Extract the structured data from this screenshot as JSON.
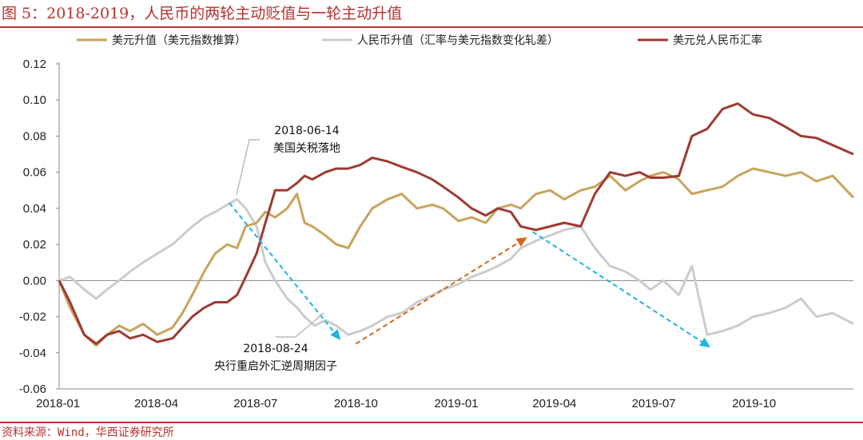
{
  "title": "图 5：2018-2019，人民币的两轮主动贬值与一轮主动升值",
  "source": "资料来源：Wind，华西证券研究所",
  "colors": {
    "usd_index": "#c9a35c",
    "rmb": "#cccccc",
    "usdcny": "#9e3a32",
    "arrow_blue": "#1fb3e8",
    "arrow_orange": "#d2691e",
    "title_red": "#b8312f"
  },
  "chart_data": {
    "type": "line",
    "title": "",
    "xlabel": "",
    "ylabel": "",
    "ylim": [
      -0.06,
      0.12
    ],
    "yticks": [
      "0.12",
      "0.10",
      "0.08",
      "0.06",
      "0.04",
      "0.02",
      "0.00",
      "-0.02",
      "-0.04",
      "-0.06"
    ],
    "xlim": [
      "2018-01-02",
      "2019-12-31"
    ],
    "xticks": [
      {
        "label": "2018-01",
        "date": "2018-01-01"
      },
      {
        "label": "2018-04",
        "date": "2018-04-01"
      },
      {
        "label": "2018-07",
        "date": "2018-07-01"
      },
      {
        "label": "2018-10",
        "date": "2018-10-01"
      },
      {
        "label": "2019-01",
        "date": "2019-01-01"
      },
      {
        "label": "2019-04",
        "date": "2019-04-01"
      },
      {
        "label": "2019-07",
        "date": "2019-07-01"
      },
      {
        "label": "2019-10",
        "date": "2019-10-01"
      }
    ],
    "legend_position": "top",
    "grid": false,
    "series": [
      {
        "name": "美元升值（美元指数推算）",
        "color": "#c9a35c",
        "x": [
          "2018-01-02",
          "2018-01-12",
          "2018-01-25",
          "2018-02-05",
          "2018-02-15",
          "2018-02-26",
          "2018-03-08",
          "2018-03-20",
          "2018-04-02",
          "2018-04-16",
          "2018-04-25",
          "2018-05-04",
          "2018-05-15",
          "2018-05-25",
          "2018-06-05",
          "2018-06-14",
          "2018-06-22",
          "2018-07-02",
          "2018-07-10",
          "2018-07-19",
          "2018-07-30",
          "2018-08-08",
          "2018-08-15",
          "2018-08-22",
          "2018-09-03",
          "2018-09-13",
          "2018-09-24",
          "2018-10-05",
          "2018-10-16",
          "2018-10-30",
          "2018-11-12",
          "2018-11-26",
          "2018-12-10",
          "2018-12-20",
          "2019-01-03",
          "2019-01-15",
          "2019-01-28",
          "2019-02-08",
          "2019-02-20",
          "2019-03-01",
          "2019-03-15",
          "2019-03-28",
          "2019-04-10",
          "2019-04-25",
          "2019-05-08",
          "2019-05-22",
          "2019-06-05",
          "2019-06-18",
          "2019-06-28",
          "2019-07-10",
          "2019-07-24",
          "2019-08-05",
          "2019-08-19",
          "2019-09-02",
          "2019-09-16",
          "2019-09-30",
          "2019-10-15",
          "2019-10-30",
          "2019-11-13",
          "2019-11-27",
          "2019-12-12",
          "2019-12-31"
        ],
        "values": [
          0.0,
          -0.015,
          -0.03,
          -0.036,
          -0.03,
          -0.025,
          -0.028,
          -0.024,
          -0.03,
          -0.026,
          -0.018,
          -0.008,
          0.005,
          0.015,
          0.02,
          0.018,
          0.03,
          0.032,
          0.038,
          0.035,
          0.04,
          0.048,
          0.032,
          0.03,
          0.025,
          0.02,
          0.018,
          0.03,
          0.04,
          0.045,
          0.048,
          0.04,
          0.042,
          0.04,
          0.033,
          0.035,
          0.032,
          0.04,
          0.042,
          0.04,
          0.048,
          0.05,
          0.045,
          0.05,
          0.052,
          0.058,
          0.05,
          0.055,
          0.058,
          0.06,
          0.056,
          0.048,
          0.05,
          0.052,
          0.058,
          0.062,
          0.06,
          0.058,
          0.06,
          0.055,
          0.058,
          0.046
        ]
      },
      {
        "name": "人民币升值（汇率与美元指数变化轧差）",
        "color": "#cccccc",
        "x": [
          "2018-01-02",
          "2018-01-12",
          "2018-01-25",
          "2018-02-05",
          "2018-02-15",
          "2018-02-26",
          "2018-03-08",
          "2018-03-20",
          "2018-04-02",
          "2018-04-16",
          "2018-04-25",
          "2018-05-04",
          "2018-05-15",
          "2018-05-25",
          "2018-06-05",
          "2018-06-14",
          "2018-06-22",
          "2018-07-02",
          "2018-07-10",
          "2018-07-19",
          "2018-07-30",
          "2018-08-08",
          "2018-08-15",
          "2018-08-24",
          "2018-09-03",
          "2018-09-13",
          "2018-09-24",
          "2018-10-05",
          "2018-10-16",
          "2018-10-30",
          "2018-11-12",
          "2018-11-26",
          "2018-12-10",
          "2018-12-20",
          "2019-01-03",
          "2019-01-15",
          "2019-01-28",
          "2019-02-08",
          "2019-02-20",
          "2019-03-01",
          "2019-03-15",
          "2019-03-28",
          "2019-04-10",
          "2019-04-25",
          "2019-05-08",
          "2019-05-22",
          "2019-06-05",
          "2019-06-18",
          "2019-06-28",
          "2019-07-10",
          "2019-07-24",
          "2019-08-05",
          "2019-08-19",
          "2019-09-02",
          "2019-09-16",
          "2019-09-30",
          "2019-10-15",
          "2019-10-30",
          "2019-11-13",
          "2019-11-27",
          "2019-12-12",
          "2019-12-31"
        ],
        "values": [
          0.0,
          0.002,
          -0.005,
          -0.01,
          -0.005,
          0.0,
          0.005,
          0.01,
          0.015,
          0.02,
          0.025,
          0.03,
          0.035,
          0.038,
          0.042,
          0.045,
          0.04,
          0.03,
          0.01,
          0.0,
          -0.01,
          -0.015,
          -0.02,
          -0.025,
          -0.022,
          -0.025,
          -0.03,
          -0.028,
          -0.025,
          -0.02,
          -0.018,
          -0.012,
          -0.008,
          -0.005,
          -0.002,
          0.002,
          0.005,
          0.008,
          0.012,
          0.018,
          0.022,
          0.025,
          0.028,
          0.03,
          0.018,
          0.008,
          0.005,
          0.0,
          -0.005,
          0.0,
          -0.008,
          0.008,
          -0.03,
          -0.028,
          -0.025,
          -0.02,
          -0.018,
          -0.015,
          -0.01,
          -0.02,
          -0.018,
          -0.024
        ]
      },
      {
        "name": "美元兑人民币汇率",
        "color": "#9e3a32",
        "x": [
          "2018-01-02",
          "2018-01-12",
          "2018-01-25",
          "2018-02-05",
          "2018-02-15",
          "2018-02-26",
          "2018-03-08",
          "2018-03-20",
          "2018-04-02",
          "2018-04-16",
          "2018-04-25",
          "2018-05-04",
          "2018-05-15",
          "2018-05-25",
          "2018-06-05",
          "2018-06-14",
          "2018-06-22",
          "2018-07-02",
          "2018-07-10",
          "2018-07-19",
          "2018-07-30",
          "2018-08-08",
          "2018-08-15",
          "2018-08-22",
          "2018-09-03",
          "2018-09-13",
          "2018-09-24",
          "2018-10-05",
          "2018-10-16",
          "2018-10-30",
          "2018-11-12",
          "2018-11-26",
          "2018-12-10",
          "2018-12-20",
          "2019-01-03",
          "2019-01-15",
          "2019-01-28",
          "2019-02-08",
          "2019-02-20",
          "2019-03-01",
          "2019-03-15",
          "2019-03-28",
          "2019-04-10",
          "2019-04-25",
          "2019-05-08",
          "2019-05-22",
          "2019-06-05",
          "2019-06-18",
          "2019-06-28",
          "2019-07-10",
          "2019-07-24",
          "2019-08-05",
          "2019-08-19",
          "2019-09-02",
          "2019-09-16",
          "2019-09-30",
          "2019-10-15",
          "2019-10-30",
          "2019-11-13",
          "2019-11-27",
          "2019-12-12",
          "2019-12-31"
        ],
        "values": [
          0.0,
          -0.012,
          -0.03,
          -0.035,
          -0.03,
          -0.028,
          -0.032,
          -0.03,
          -0.034,
          -0.032,
          -0.026,
          -0.02,
          -0.015,
          -0.012,
          -0.012,
          -0.008,
          0.002,
          0.015,
          0.032,
          0.05,
          0.05,
          0.054,
          0.058,
          0.056,
          0.06,
          0.062,
          0.062,
          0.064,
          0.068,
          0.066,
          0.063,
          0.06,
          0.056,
          0.052,
          0.046,
          0.04,
          0.036,
          0.04,
          0.038,
          0.03,
          0.028,
          0.03,
          0.032,
          0.03,
          0.048,
          0.06,
          0.058,
          0.06,
          0.057,
          0.057,
          0.058,
          0.08,
          0.084,
          0.095,
          0.098,
          0.092,
          0.09,
          0.085,
          0.08,
          0.079,
          0.075,
          0.07
        ]
      }
    ],
    "annotations": [
      {
        "name": "tariff",
        "date": "2018-06-14",
        "line1": "2018-06-14",
        "line2": "美国关税落地"
      },
      {
        "name": "ccf",
        "date": "2018-08-24",
        "line1": "2018-08-24",
        "line2": "央行重启外汇逆周期因子"
      }
    ],
    "arrows": [
      {
        "name": "depreciation-1",
        "color": "#1fb3e8",
        "from": {
          "x": "2018-06-07",
          "y": 0.043
        },
        "to": {
          "x": "2018-09-17",
          "y": -0.033
        }
      },
      {
        "name": "appreciation",
        "color": "#d2691e",
        "from": {
          "x": "2018-10-01",
          "y": -0.035
        },
        "to": {
          "x": "2019-03-07",
          "y": 0.024
        }
      },
      {
        "name": "depreciation-2",
        "color": "#1fb3e8",
        "from": {
          "x": "2019-03-12",
          "y": 0.027
        },
        "to": {
          "x": "2019-08-22",
          "y": -0.037
        }
      }
    ]
  }
}
